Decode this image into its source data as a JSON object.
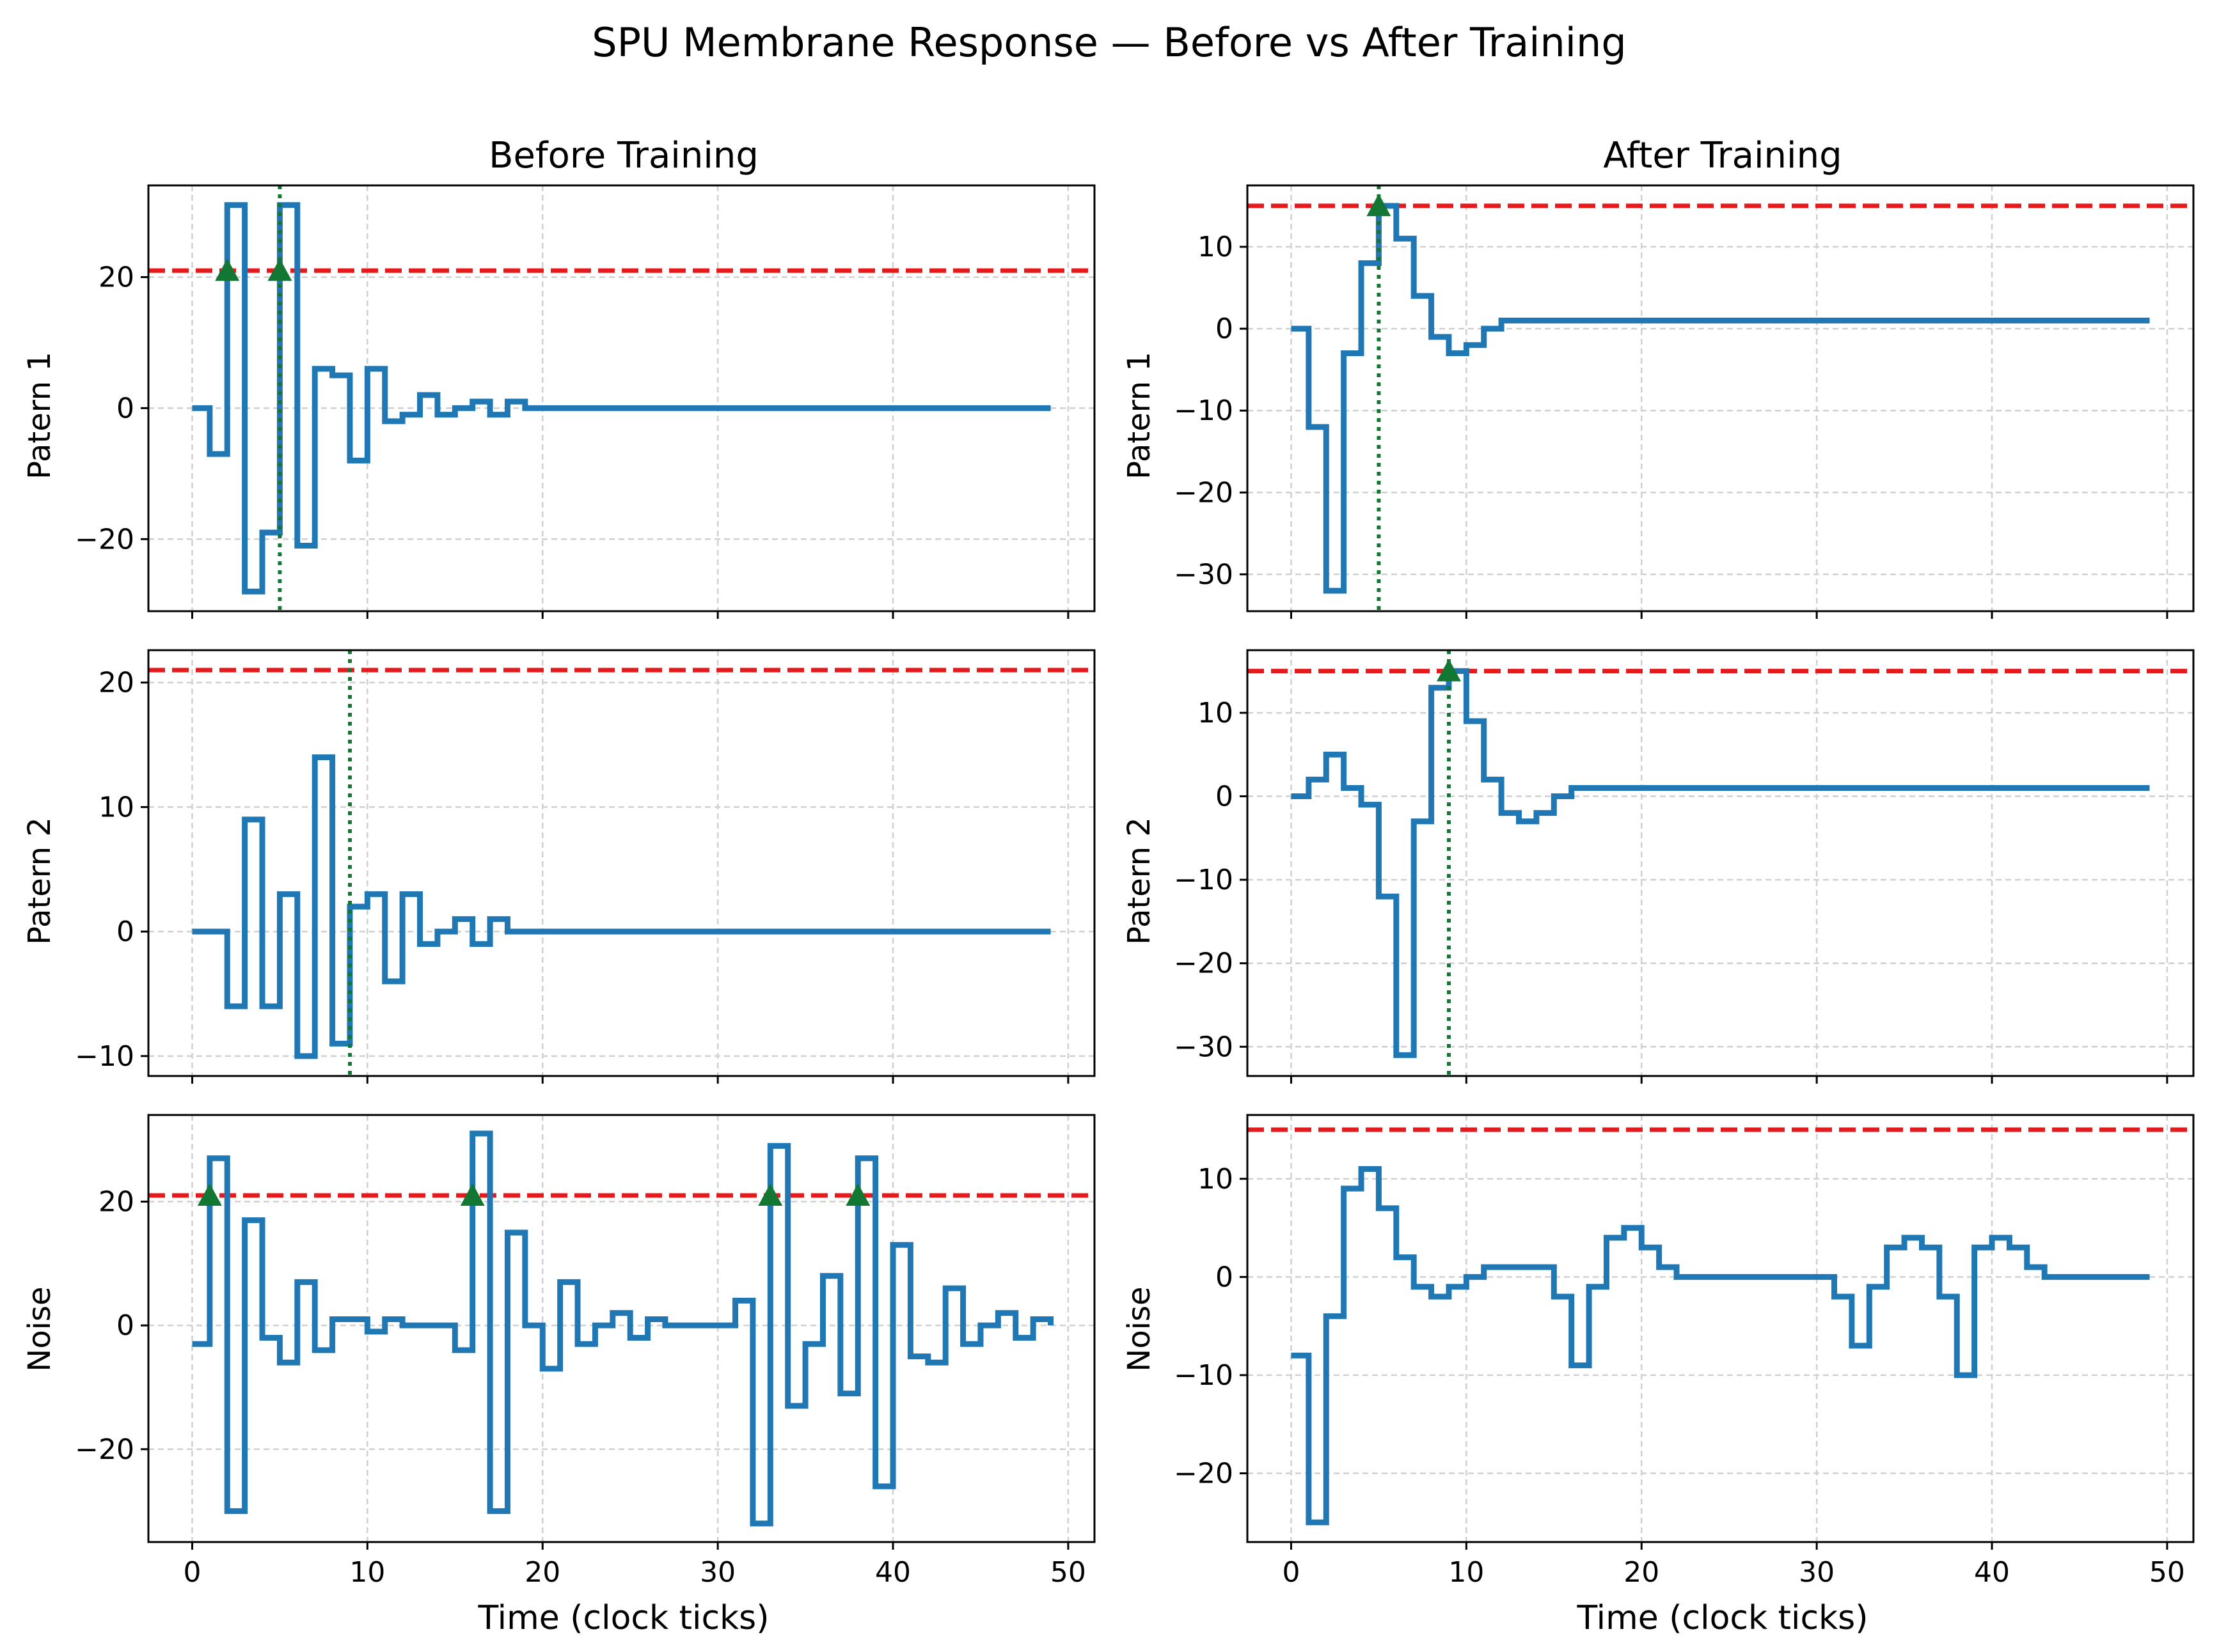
{
  "figure": {
    "title": "SPU Membrane Response — Before vs After Training",
    "xlabel": "Time (clock ticks)",
    "colors": {
      "trace": "#1f77b4",
      "threshold": "#e41a1c",
      "spike": "#117733",
      "grid": "#d0d0d0"
    }
  },
  "chart_data": [
    {
      "type": "line",
      "step": "post",
      "column_title": "Before Training",
      "row_label": "Patern 1",
      "xlabel": "",
      "ylabel": "Patern 1",
      "xlim": [
        -2.5,
        51.5
      ],
      "ylim": [
        -31,
        34
      ],
      "xticks": [],
      "yticks": [
        -20,
        0,
        20
      ],
      "threshold": 21,
      "values": [
        0,
        -7,
        31,
        -28,
        -19,
        31,
        -21,
        6,
        5,
        -8,
        6,
        -2,
        -1,
        2,
        -1,
        0,
        1,
        -1,
        1,
        0,
        0,
        0,
        0,
        0,
        0,
        0,
        0,
        0,
        0,
        0,
        0,
        0,
        0,
        0,
        0,
        0,
        0,
        0,
        0,
        0,
        0,
        0,
        0,
        0,
        0,
        0,
        0,
        0,
        0,
        0
      ],
      "spikes": [
        2,
        5
      ],
      "spike_lines": [
        5
      ]
    },
    {
      "type": "line",
      "step": "post",
      "column_title": "After Training",
      "row_label": "Patern 1",
      "xlabel": "",
      "ylabel": "Patern 1",
      "xlim": [
        -2.5,
        51.5
      ],
      "ylim": [
        -34.5,
        17.5
      ],
      "xticks": [],
      "yticks": [
        -30,
        -20,
        -10,
        0,
        10
      ],
      "threshold": 15,
      "values": [
        0,
        -12,
        -32,
        -3,
        8,
        15,
        11,
        4,
        -1,
        -3,
        -2,
        0,
        1,
        1,
        1,
        1,
        1,
        1,
        1,
        1,
        1,
        1,
        1,
        1,
        1,
        1,
        1,
        1,
        1,
        1,
        1,
        1,
        1,
        1,
        1,
        1,
        1,
        1,
        1,
        1,
        1,
        1,
        1,
        1,
        1,
        1,
        1,
        1,
        1,
        1
      ],
      "spikes": [
        5
      ],
      "spike_lines": [
        5
      ]
    },
    {
      "type": "line",
      "step": "post",
      "column_title": "",
      "row_label": "Patern 2",
      "xlabel": "",
      "ylabel": "Patern 2",
      "xlim": [
        -2.5,
        51.5
      ],
      "ylim": [
        -11.6,
        22.6
      ],
      "xticks": [],
      "yticks": [
        -10,
        0,
        10,
        20
      ],
      "threshold": 21,
      "values": [
        0,
        0,
        -6,
        9,
        -6,
        3,
        -10,
        14,
        -9,
        2,
        3,
        -4,
        3,
        -1,
        0,
        1,
        -1,
        1,
        0,
        0,
        0,
        0,
        0,
        0,
        0,
        0,
        0,
        0,
        0,
        0,
        0,
        0,
        0,
        0,
        0,
        0,
        0,
        0,
        0,
        0,
        0,
        0,
        0,
        0,
        0,
        0,
        0,
        0,
        0,
        0
      ],
      "spikes": [],
      "spike_lines": [
        9
      ]
    },
    {
      "type": "line",
      "step": "post",
      "column_title": "",
      "row_label": "Patern 2",
      "xlabel": "",
      "ylabel": "Patern 2",
      "xlim": [
        -2.5,
        51.5
      ],
      "ylim": [
        -33.5,
        17.5
      ],
      "xticks": [],
      "yticks": [
        -30,
        -20,
        -10,
        0,
        10
      ],
      "threshold": 15,
      "values": [
        0,
        2,
        5,
        1,
        -1,
        -12,
        -31,
        -3,
        13,
        15,
        9,
        2,
        -2,
        -3,
        -2,
        0,
        1,
        1,
        1,
        1,
        1,
        1,
        1,
        1,
        1,
        1,
        1,
        1,
        1,
        1,
        1,
        1,
        1,
        1,
        1,
        1,
        1,
        1,
        1,
        1,
        1,
        1,
        1,
        1,
        1,
        1,
        1,
        1,
        1,
        1
      ],
      "spikes": [
        9
      ],
      "spike_lines": [
        9
      ]
    },
    {
      "type": "line",
      "step": "post",
      "column_title": "",
      "row_label": "Noise",
      "xlabel": "Time (clock ticks)",
      "ylabel": "Noise",
      "xlim": [
        -2.5,
        51.5
      ],
      "ylim": [
        -35,
        34
      ],
      "xticks": [
        0,
        10,
        20,
        30,
        40,
        50
      ],
      "yticks": [
        -20,
        0,
        20
      ],
      "threshold": 21,
      "values": [
        -3,
        27,
        -30,
        17,
        -2,
        -6,
        7,
        -4,
        1,
        1,
        -1,
        1,
        0,
        0,
        0,
        -4,
        31,
        -30,
        15,
        0,
        -7,
        7,
        -3,
        0,
        2,
        -2,
        1,
        0,
        0,
        0,
        0,
        4,
        -32,
        29,
        -13,
        -3,
        8,
        -11,
        27,
        -26,
        13,
        -5,
        -6,
        6,
        -3,
        0,
        2,
        -2,
        1,
        0
      ],
      "spikes": [
        1,
        16,
        33,
        38
      ],
      "spike_lines": []
    },
    {
      "type": "line",
      "step": "post",
      "column_title": "",
      "row_label": "Noise",
      "xlabel": "Time (clock ticks)",
      "ylabel": "Noise",
      "xlim": [
        -2.5,
        51.5
      ],
      "ylim": [
        -27,
        16.5
      ],
      "xticks": [
        0,
        10,
        20,
        30,
        40,
        50
      ],
      "yticks": [
        -20,
        -10,
        0,
        10
      ],
      "threshold": 15,
      "values": [
        -8,
        -25,
        -4,
        9,
        11,
        7,
        2,
        -1,
        -2,
        -1,
        0,
        1,
        1,
        1,
        1,
        -2,
        -9,
        -1,
        4,
        5,
        3,
        1,
        0,
        0,
        0,
        0,
        0,
        0,
        0,
        0,
        0,
        -2,
        -7,
        -1,
        3,
        4,
        3,
        -2,
        -10,
        3,
        4,
        3,
        1,
        0,
        0,
        0,
        0,
        0,
        0,
        0
      ],
      "spikes": [],
      "spike_lines": []
    }
  ]
}
